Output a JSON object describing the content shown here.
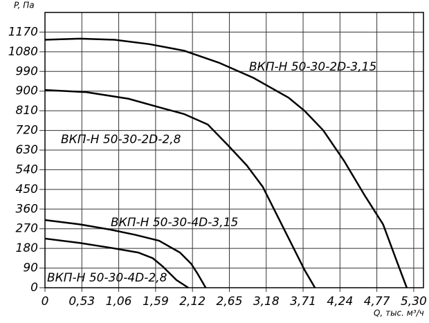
{
  "chart_data": {
    "type": "line",
    "x_label": "Q, тыс. м³/ч",
    "y_label": "P, Па",
    "xlim": [
      0,
      5.44
    ],
    "ylim": [
      0,
      1260
    ],
    "xticks": [
      0,
      {
        "value": 0.53,
        "label": "0,53"
      },
      {
        "value": 1.06,
        "label": "1,06"
      },
      {
        "value": 1.59,
        "label": "1,59"
      },
      {
        "value": 2.12,
        "label": "2,12"
      },
      {
        "value": 2.65,
        "label": "2,65"
      },
      {
        "value": 3.18,
        "label": "3,18"
      },
      {
        "value": 3.71,
        "label": "3,71"
      },
      {
        "value": 4.24,
        "label": "4,24"
      },
      {
        "value": 4.77,
        "label": "4,77"
      },
      {
        "value": 5.3,
        "label": "5,30"
      }
    ],
    "yticks": [
      0,
      90,
      180,
      270,
      360,
      450,
      540,
      630,
      720,
      810,
      900,
      990,
      1080,
      1170
    ],
    "grid": true,
    "series": [
      {
        "name": "ВКП-Н 50-30-2D-3,15",
        "color": "#000000",
        "x": [
          0,
          0.5,
          1.0,
          1.5,
          2.0,
          2.5,
          3.0,
          3.5,
          3.73,
          4.0,
          4.3,
          4.6,
          4.86,
          5.07,
          5.2
        ],
        "values": [
          1135,
          1140,
          1135,
          1115,
          1085,
          1030,
          960,
          870,
          810,
          720,
          580,
          420,
          290,
          110,
          0
        ]
      },
      {
        "name": "ВКП-Н 50-30-2D-2,8",
        "color": "#000000",
        "x": [
          0,
          0.6,
          1.2,
          1.64,
          2.0,
          2.34,
          2.63,
          2.9,
          3.13,
          3.43,
          3.73,
          3.88
        ],
        "values": [
          905,
          895,
          865,
          826,
          795,
          747,
          652,
          560,
          462,
          272,
          82,
          0
        ]
      },
      {
        "name": "ВКП-Н 50-30-4D-3,15",
        "color": "#000000",
        "x": [
          0,
          0.5,
          0.94,
          1.3,
          1.64,
          1.94,
          2.1,
          2.19,
          2.31
        ],
        "values": [
          310,
          290,
          266,
          242,
          215,
          161,
          110,
          66,
          0
        ]
      },
      {
        "name": "ВКП-Н 50-30-4D-2,8",
        "color": "#000000",
        "x": [
          0,
          0.5,
          0.94,
          1.34,
          1.55,
          1.69,
          1.89,
          2.06
        ],
        "values": [
          225,
          205,
          183,
          161,
          135,
          98,
          35,
          0
        ]
      }
    ]
  }
}
